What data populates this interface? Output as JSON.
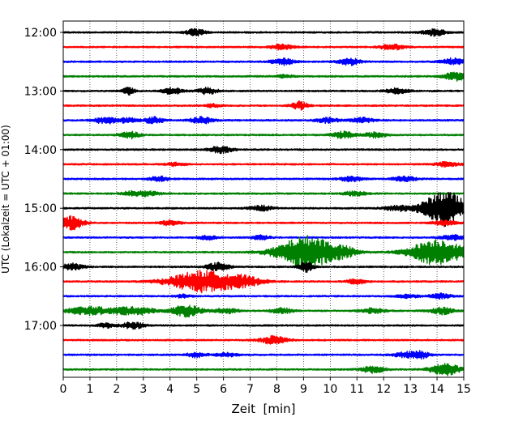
{
  "chart_data": {
    "type": "line",
    "title": "",
    "xlabel": "Zeit  [min]",
    "ylabel": "UTC (Lokalzeit = UTC + 01:00)",
    "xlim": [
      0,
      15
    ],
    "x_ticks": [
      "0",
      "1",
      "2",
      "3",
      "4",
      "5",
      "6",
      "7",
      "8",
      "9",
      "10",
      "11",
      "12",
      "13",
      "14",
      "15"
    ],
    "y_ticks": [
      "12:00",
      "13:00",
      "14:00",
      "15:00",
      "16:00",
      "17:00"
    ],
    "x_grid": true,
    "y_grid": false,
    "legend": "none",
    "trace_colors": [
      "#000000",
      "#ff0000",
      "#0000ff",
      "#008000"
    ],
    "series": [
      {
        "start": "12:00",
        "color": "#000000",
        "baseline": 1.0,
        "bursts": [
          {
            "t": 4.95,
            "a": 4,
            "w": 0.25
          },
          {
            "t": 13.9,
            "a": 4,
            "w": 0.3
          }
        ]
      },
      {
        "start": "12:15",
        "color": "#ff0000",
        "baseline": 1.0,
        "bursts": [
          {
            "t": 8.2,
            "a": 3,
            "w": 0.3
          },
          {
            "t": 12.3,
            "a": 3.5,
            "w": 0.3
          }
        ]
      },
      {
        "start": "12:30",
        "color": "#0000ff",
        "baseline": 1.0,
        "bursts": [
          {
            "t": 8.2,
            "a": 4,
            "w": 0.3
          },
          {
            "t": 10.7,
            "a": 4,
            "w": 0.3
          },
          {
            "t": 14.6,
            "a": 4,
            "w": 0.3
          }
        ]
      },
      {
        "start": "12:45",
        "color": "#008000",
        "baseline": 1.0,
        "bursts": [
          {
            "t": 8.3,
            "a": 2,
            "w": 0.2
          },
          {
            "t": 14.7,
            "a": 5,
            "w": 0.3
          }
        ]
      },
      {
        "start": "13:00",
        "color": "#000000",
        "baseline": 1.0,
        "bursts": [
          {
            "t": 2.45,
            "a": 5,
            "w": 0.15
          },
          {
            "t": 4.1,
            "a": 4,
            "w": 0.25
          },
          {
            "t": 5.4,
            "a": 4,
            "w": 0.25
          },
          {
            "t": 12.5,
            "a": 3,
            "w": 0.3
          }
        ]
      },
      {
        "start": "13:15",
        "color": "#ff0000",
        "baseline": 1.0,
        "bursts": [
          {
            "t": 5.6,
            "a": 2,
            "w": 0.2
          },
          {
            "t": 8.85,
            "a": 5,
            "w": 0.2
          }
        ]
      },
      {
        "start": "13:30",
        "color": "#0000ff",
        "baseline": 1.0,
        "bursts": [
          {
            "t": 1.6,
            "a": 4,
            "w": 0.3
          },
          {
            "t": 2.4,
            "a": 3,
            "w": 0.25
          },
          {
            "t": 3.4,
            "a": 4,
            "w": 0.25
          },
          {
            "t": 5.2,
            "a": 4,
            "w": 0.3
          },
          {
            "t": 9.9,
            "a": 3,
            "w": 0.3
          },
          {
            "t": 11.2,
            "a": 3,
            "w": 0.3
          }
        ]
      },
      {
        "start": "13:45",
        "color": "#008000",
        "baseline": 1.0,
        "bursts": [
          {
            "t": 2.5,
            "a": 4,
            "w": 0.25
          },
          {
            "t": 10.5,
            "a": 4,
            "w": 0.3
          },
          {
            "t": 11.7,
            "a": 3,
            "w": 0.3
          }
        ]
      },
      {
        "start": "14:00",
        "color": "#000000",
        "baseline": 1.0,
        "bursts": [
          {
            "t": 5.9,
            "a": 4,
            "w": 0.3
          }
        ]
      },
      {
        "start": "14:15",
        "color": "#ff0000",
        "baseline": 1.0,
        "bursts": [
          {
            "t": 4.2,
            "a": 2,
            "w": 0.25
          },
          {
            "t": 14.4,
            "a": 3,
            "w": 0.3
          }
        ]
      },
      {
        "start": "14:30",
        "color": "#0000ff",
        "baseline": 1.0,
        "bursts": [
          {
            "t": 3.6,
            "a": 3,
            "w": 0.25
          },
          {
            "t": 10.8,
            "a": 3,
            "w": 0.3
          },
          {
            "t": 12.8,
            "a": 3,
            "w": 0.3
          }
        ]
      },
      {
        "start": "14:45",
        "color": "#008000",
        "baseline": 1.0,
        "bursts": [
          {
            "t": 2.6,
            "a": 2.5,
            "w": 0.3
          },
          {
            "t": 3.2,
            "a": 2.5,
            "w": 0.3
          },
          {
            "t": 10.9,
            "a": 2.5,
            "w": 0.3
          }
        ]
      },
      {
        "start": "15:00",
        "color": "#000000",
        "baseline": 1.0,
        "bursts": [
          {
            "t": 7.4,
            "a": 3,
            "w": 0.3
          },
          {
            "t": 12.6,
            "a": 3,
            "w": 0.4
          },
          {
            "t": 14.3,
            "a": 22,
            "w": 0.55
          }
        ]
      },
      {
        "start": "15:15",
        "color": "#ff0000",
        "baseline": 1.0,
        "bursts": [
          {
            "t": 0.3,
            "a": 9,
            "w": 0.3
          },
          {
            "t": 4.0,
            "a": 3,
            "w": 0.25
          },
          {
            "t": 14.3,
            "a": 3,
            "w": 0.3
          }
        ]
      },
      {
        "start": "15:30",
        "color": "#0000ff",
        "baseline": 1.0,
        "bursts": [
          {
            "t": 5.4,
            "a": 2.5,
            "w": 0.25
          },
          {
            "t": 7.4,
            "a": 2.5,
            "w": 0.25
          },
          {
            "t": 14.6,
            "a": 3,
            "w": 0.3
          }
        ]
      },
      {
        "start": "15:45",
        "color": "#008000",
        "baseline": 1.0,
        "bursts": [
          {
            "t": 9.2,
            "a": 20,
            "w": 0.8
          },
          {
            "t": 14.0,
            "a": 16,
            "w": 0.7
          },
          {
            "t": 10.6,
            "a": 3,
            "w": 0.25
          }
        ]
      },
      {
        "start": "16:00",
        "color": "#000000",
        "baseline": 1.0,
        "bursts": [
          {
            "t": 0.3,
            "a": 4,
            "w": 0.3
          },
          {
            "t": 5.8,
            "a": 5,
            "w": 0.3
          },
          {
            "t": 9.1,
            "a": 6,
            "w": 0.2
          }
        ]
      },
      {
        "start": "16:15",
        "color": "#ff0000",
        "baseline": 1.0,
        "bursts": [
          {
            "t": 5.2,
            "a": 13,
            "w": 0.85
          },
          {
            "t": 6.8,
            "a": 5,
            "w": 0.5
          },
          {
            "t": 11.0,
            "a": 3,
            "w": 0.25
          }
        ]
      },
      {
        "start": "16:30",
        "color": "#0000ff",
        "baseline": 1.0,
        "bursts": [
          {
            "t": 4.5,
            "a": 2,
            "w": 0.2
          },
          {
            "t": 12.9,
            "a": 2,
            "w": 0.3
          },
          {
            "t": 14.1,
            "a": 3,
            "w": 0.3
          }
        ]
      },
      {
        "start": "16:45",
        "color": "#008000",
        "baseline": 1.0,
        "bursts": [
          {
            "t": 1.0,
            "a": 5,
            "w": 0.6
          },
          {
            "t": 2.3,
            "a": 4,
            "w": 0.3
          },
          {
            "t": 3.0,
            "a": 4,
            "w": 0.3
          },
          {
            "t": 4.6,
            "a": 7,
            "w": 0.4
          },
          {
            "t": 6.1,
            "a": 3,
            "w": 0.3
          },
          {
            "t": 8.2,
            "a": 3,
            "w": 0.3
          },
          {
            "t": 11.6,
            "a": 3,
            "w": 0.3
          },
          {
            "t": 14.2,
            "a": 4,
            "w": 0.3
          }
        ]
      },
      {
        "start": "17:00",
        "color": "#000000",
        "baseline": 1.0,
        "bursts": [
          {
            "t": 1.6,
            "a": 3,
            "w": 0.2
          },
          {
            "t": 2.6,
            "a": 4,
            "w": 0.3
          }
        ]
      },
      {
        "start": "17:15",
        "color": "#ff0000",
        "baseline": 1.0,
        "bursts": [
          {
            "t": 7.9,
            "a": 5,
            "w": 0.35
          }
        ]
      },
      {
        "start": "17:30",
        "color": "#0000ff",
        "baseline": 1.0,
        "bursts": [
          {
            "t": 5.0,
            "a": 3,
            "w": 0.25
          },
          {
            "t": 6.1,
            "a": 2,
            "w": 0.3
          },
          {
            "t": 12.8,
            "a": 3,
            "w": 0.3
          },
          {
            "t": 13.4,
            "a": 4,
            "w": 0.25
          }
        ]
      },
      {
        "start": "17:45",
        "color": "#008000",
        "baseline": 1.0,
        "bursts": [
          {
            "t": 11.6,
            "a": 4,
            "w": 0.3
          },
          {
            "t": 14.3,
            "a": 7,
            "w": 0.4
          }
        ]
      }
    ]
  }
}
